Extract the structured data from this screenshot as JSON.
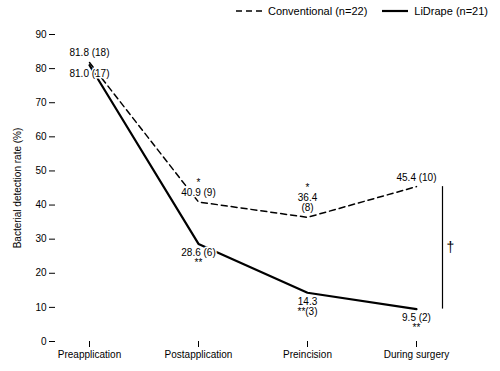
{
  "chart_data": {
    "type": "line",
    "categories": [
      "Preapplication",
      "Postapplication",
      "Preincision",
      "During surgery"
    ],
    "series": [
      {
        "name": "Conventional (n=22)",
        "color": "#000000",
        "line_style": "dashed",
        "values": [
          81.8,
          40.9,
          36.4,
          45.4
        ]
      },
      {
        "name": "LiDrape (n=21)",
        "color": "#000000",
        "line_style": "solid",
        "values": [
          81.0,
          28.6,
          14.3,
          9.5
        ]
      }
    ],
    "ylabel": "Bacterial detection rate (%)",
    "ylim": [
      0,
      90
    ],
    "yticks": [
      0,
      10,
      20,
      30,
      40,
      50,
      60,
      70,
      80,
      90
    ],
    "legend": "upper right",
    "annotations": [
      {
        "series": "Conventional (n=22)",
        "category": "Preapplication",
        "lines": [
          "81.8 (18)"
        ]
      },
      {
        "series": "LiDrape (n=21)",
        "category": "Preapplication",
        "lines": [
          "81.0 (17)"
        ]
      },
      {
        "series": "Conventional (n=22)",
        "category": "Postapplication",
        "lines": [
          "*",
          "40.9 (9)"
        ]
      },
      {
        "series": "LiDrape (n=21)",
        "category": "Postapplication",
        "lines": [
          "28.6 (6)",
          "**"
        ]
      },
      {
        "series": "Conventional (n=22)",
        "category": "Preincision",
        "lines": [
          "*",
          "36.4",
          "(8)"
        ]
      },
      {
        "series": "LiDrape (n=21)",
        "category": "Preincision",
        "lines": [
          "14.3",
          "**(3)"
        ]
      },
      {
        "series": "Conventional (n=22)",
        "category": "During surgery",
        "lines": [
          "45.4 (10)"
        ]
      },
      {
        "series": "LiDrape (n=21)",
        "category": "During surgery",
        "lines": [
          "9.5 (2)",
          "**"
        ]
      },
      {
        "between": [
          "Conventional (n=22)",
          "LiDrape (n=21)"
        ],
        "category": "During surgery",
        "text": "†"
      }
    ]
  }
}
